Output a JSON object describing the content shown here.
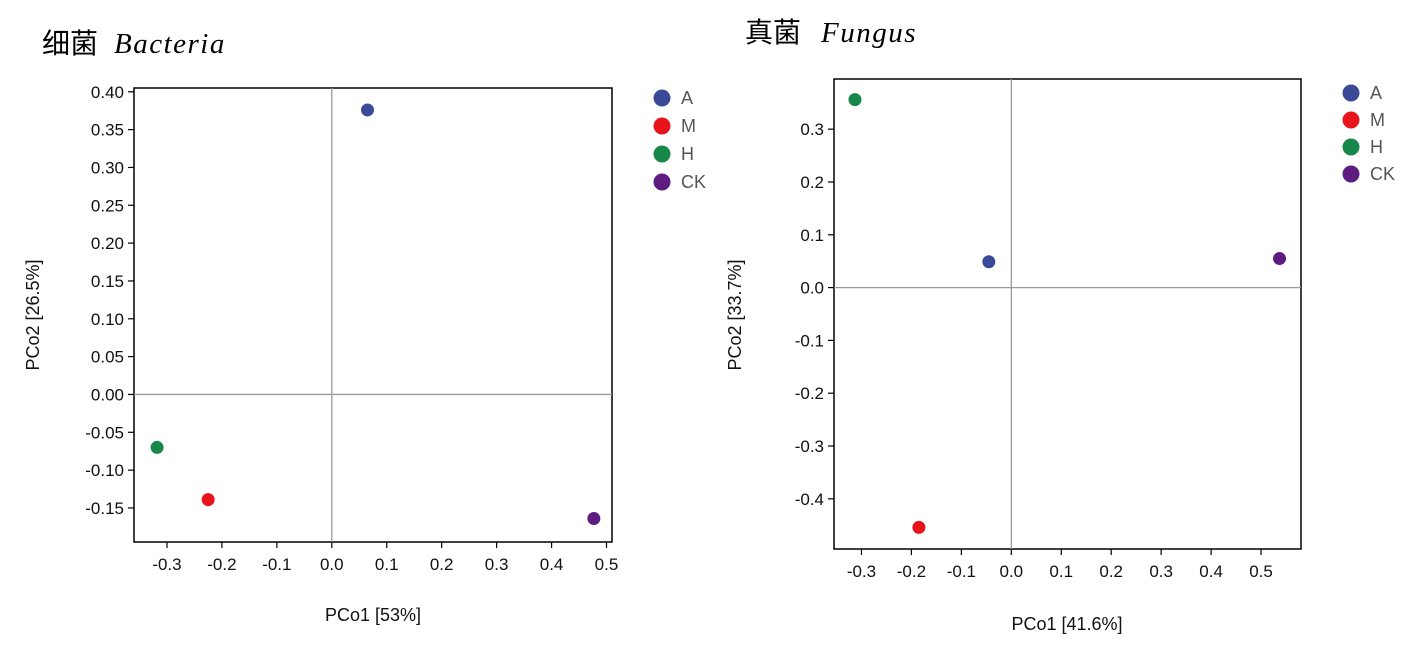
{
  "chart_data": [
    {
      "type": "scatter",
      "title_cn": "细菌",
      "title_latin": "Bacteria",
      "xlabel": "PCo1 [53%]",
      "ylabel": "PCo2 [26.5%]",
      "xlim": [
        -0.36,
        0.51
      ],
      "ylim": [
        -0.195,
        0.405
      ],
      "xticks": [
        "-0.3",
        "-0.2",
        "-0.1",
        "0.0",
        "0.1",
        "0.2",
        "0.3",
        "0.4",
        "0.5"
      ],
      "yticks": [
        "0.40",
        "0.35",
        "0.30",
        "0.25",
        "0.20",
        "0.15",
        "0.10",
        "0.05",
        "0.00",
        "-0.05",
        "-0.10",
        "-0.15"
      ],
      "grid": false,
      "zero_lines": true,
      "legend_position": "outside-right-top",
      "series": [
        {
          "name": "A",
          "color": "#3a4a96",
          "x": 0.065,
          "y": 0.376
        },
        {
          "name": "M",
          "color": "#e8141c",
          "x": -0.225,
          "y": -0.139
        },
        {
          "name": "H",
          "color": "#17874a",
          "x": -0.318,
          "y": -0.07
        },
        {
          "name": "CK",
          "color": "#5e1c80",
          "x": 0.477,
          "y": -0.164
        }
      ]
    },
    {
      "type": "scatter",
      "title_cn": "真菌",
      "title_latin": "Fungus",
      "xlabel": "PCo1 [41.6%]",
      "ylabel": "PCo2 [33.7%]",
      "xlim": [
        -0.355,
        0.58
      ],
      "ylim": [
        -0.495,
        0.395
      ],
      "xticks": [
        "-0.3",
        "-0.2",
        "-0.1",
        "0.0",
        "0.1",
        "0.2",
        "0.3",
        "0.4",
        "0.5"
      ],
      "yticks": [
        "0.3",
        "0.2",
        "0.1",
        "0.0",
        "-0.1",
        "-0.2",
        "-0.3",
        "-0.4"
      ],
      "grid": false,
      "zero_lines": true,
      "legend_position": "outside-right-top",
      "series": [
        {
          "name": "A",
          "color": "#3a4a96",
          "x": -0.045,
          "y": 0.049
        },
        {
          "name": "M",
          "color": "#e8141c",
          "x": -0.185,
          "y": -0.454
        },
        {
          "name": "H",
          "color": "#17874a",
          "x": -0.313,
          "y": 0.356
        },
        {
          "name": "CK",
          "color": "#5e1c80",
          "x": 0.537,
          "y": 0.055
        }
      ]
    }
  ]
}
